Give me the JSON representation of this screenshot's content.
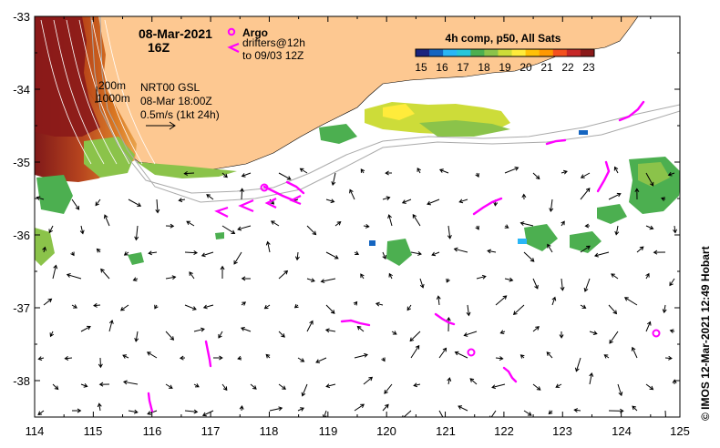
{
  "header": {
    "date": "08-Mar-2021",
    "hour": "16Z"
  },
  "legend_argo": {
    "label": "Argo",
    "drifters_line1": "drifters@12h",
    "drifters_line2": "to 09/03 12Z"
  },
  "sst_colorbar": {
    "title": "4h comp, p50, All Sats",
    "ticks": [
      "15",
      "16",
      "17",
      "18",
      "19",
      "20",
      "21",
      "22",
      "23"
    ],
    "colors": [
      "#1a237e",
      "#1565c0",
      "#29b6f6",
      "#26c6da",
      "#4caf50",
      "#8bc34a",
      "#cddc39",
      "#ffeb3b",
      "#ffc107",
      "#ff9800",
      "#f4511e",
      "#c62828",
      "#8b1a1a"
    ]
  },
  "depth_legend": {
    "d1": "200m",
    "d2": "1000m"
  },
  "current_info": {
    "line1": "NRT00 GSL",
    "line2": "08-Mar 18:00Z",
    "line3": "0.5m/s (1kt 24h)"
  },
  "axes": {
    "x_ticks": [
      "114",
      "115",
      "116",
      "117",
      "118",
      "119",
      "120",
      "121",
      "122",
      "123",
      "124",
      "125"
    ],
    "y_ticks": [
      "-33",
      "-34",
      "-35",
      "-36",
      "-37",
      "-38"
    ],
    "lon_range": [
      114,
      125
    ],
    "lat_range": [
      -38.5,
      -33
    ]
  },
  "credit": "© IMOS 12-Mar-2021 12:49 Hobart",
  "colors": {
    "land": "#fdc891",
    "argo": "#ff00ff",
    "drifter": "#ff00ff",
    "isobath": "#aaaaaa"
  }
}
